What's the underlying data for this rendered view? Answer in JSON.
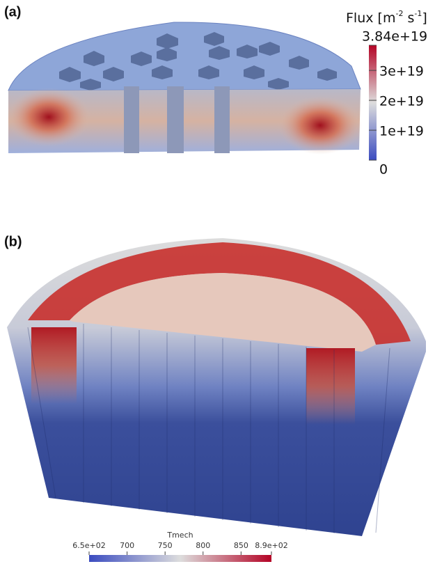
{
  "panel_a": {
    "label": "(a)",
    "colorbar": {
      "title_parts": [
        "Flux [m",
        "-2",
        " s",
        "-1",
        "]"
      ],
      "range": [
        0,
        3.84e+19
      ],
      "ticks": [
        {
          "value": 3.84e+19,
          "label": "3.84e+19"
        },
        {
          "value": 3e+19,
          "label": "3e+19"
        },
        {
          "value": 2e+19,
          "label": "2e+19"
        },
        {
          "value": 1e+19,
          "label": "1e+19"
        },
        0
      ]
    }
  },
  "panel_b": {
    "label": "(b)",
    "colorbar": {
      "title": "Tmech",
      "range": [
        650,
        890
      ],
      "ticks": [
        {
          "value": 650,
          "label": "6.5e+02"
        },
        700,
        750,
        800,
        850,
        {
          "value": 890,
          "label": "8.9e+02"
        }
      ]
    }
  }
}
